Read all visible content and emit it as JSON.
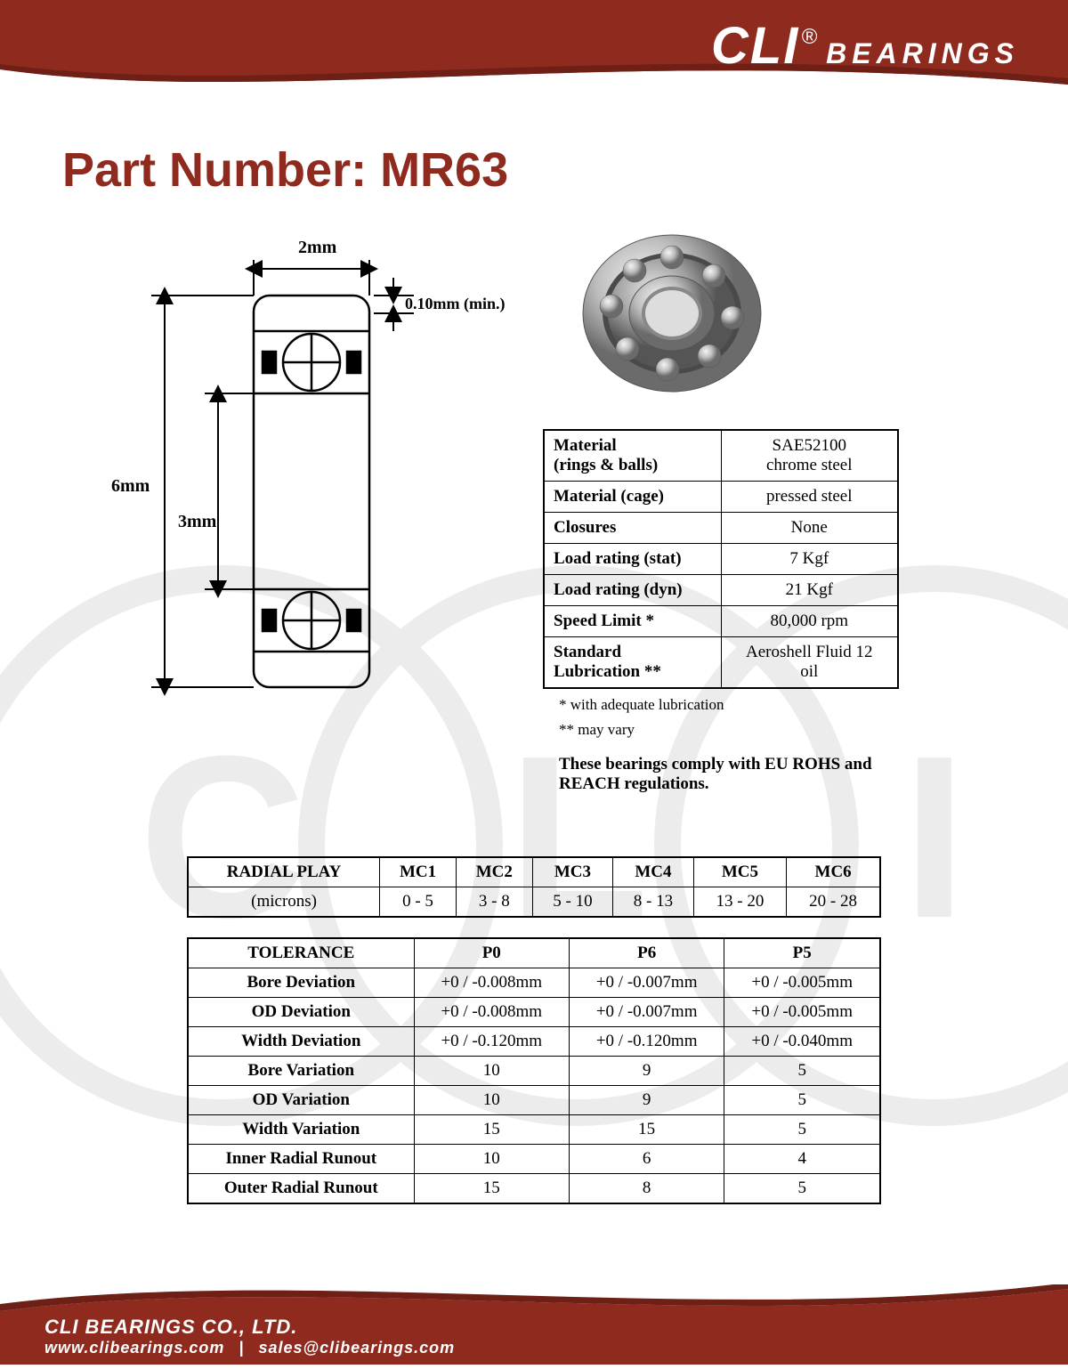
{
  "brand": {
    "name": "CLI",
    "reg": "®",
    "sub": "BEARINGS"
  },
  "footer": {
    "company": "CLI BEARINGS CO., LTD.",
    "web": "WWW.CLIBEARINGS.COM",
    "email": "SALES@CLIBEARINGS.COM"
  },
  "title": "Part Number: MR63",
  "diagram": {
    "width_label": "2mm",
    "outer_dia_label": "6mm",
    "inner_dia_label": "3mm",
    "chamfer_label": "0.10mm (min.)"
  },
  "specs": {
    "rows": [
      {
        "label": "Material\n(rings & balls)",
        "value": "SAE52100\nchrome steel"
      },
      {
        "label": "Material (cage)",
        "value": "pressed steel"
      },
      {
        "label": "Closures",
        "value": "None"
      },
      {
        "label": "Load rating (stat)",
        "value": "7 Kgf"
      },
      {
        "label": "Load rating (dyn)",
        "value": "21 Kgf"
      },
      {
        "label": "Speed Limit *",
        "value": "80,000 rpm"
      },
      {
        "label": "Standard\nLubrication **",
        "value": "Aeroshell Fluid 12\noil"
      }
    ],
    "note1": "* with adequate lubrication",
    "note2": "** may vary",
    "compliance": "These bearings comply with EU ROHS and REACH  regulations."
  },
  "radial": {
    "header": [
      "RADIAL PLAY",
      "MC1",
      "MC2",
      "MC3",
      "MC4",
      "MC5",
      "MC6"
    ],
    "unit_label": "(microns)",
    "values": [
      "0 - 5",
      "3 - 8",
      "5 - 10",
      "8 - 13",
      "13 - 20",
      "20 - 28"
    ]
  },
  "tolerance": {
    "header": [
      "TOLERANCE",
      "P0",
      "P6",
      "P5"
    ],
    "rows": [
      {
        "label": "Bore Deviation",
        "v": [
          "+0 / -0.008mm",
          "+0 / -0.007mm",
          "+0 / -0.005mm"
        ]
      },
      {
        "label": "OD Deviation",
        "v": [
          "+0 / -0.008mm",
          "+0 / -0.007mm",
          "+0 / -0.005mm"
        ]
      },
      {
        "label": "Width Deviation",
        "v": [
          "+0 / -0.120mm",
          "+0 / -0.120mm",
          "+0 / -0.040mm"
        ]
      },
      {
        "label": "Bore Variation",
        "v": [
          "10",
          "9",
          "5"
        ]
      },
      {
        "label": "OD Variation",
        "v": [
          "10",
          "9",
          "5"
        ]
      },
      {
        "label": "Width Variation",
        "v": [
          "15",
          "15",
          "5"
        ]
      },
      {
        "label": "Inner Radial Runout",
        "v": [
          "10",
          "6",
          "4"
        ]
      },
      {
        "label": "Outer Radial Runout",
        "v": [
          "15",
          "8",
          "5"
        ]
      }
    ]
  },
  "colors": {
    "brand": "#8f2a1e",
    "brand_dark": "#6e1f16",
    "white": "#ffffff",
    "black": "#000000",
    "steel_light": "#e2e2e2",
    "steel_mid": "#a8a8a8",
    "steel_dark": "#6b6b6b"
  }
}
